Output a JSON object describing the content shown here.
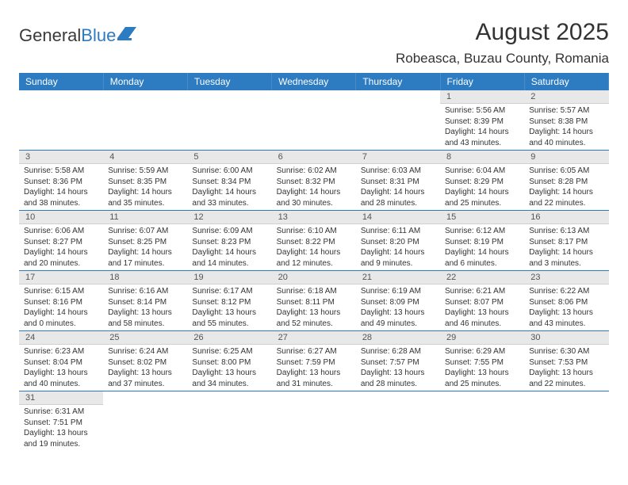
{
  "logo": {
    "part1": "General",
    "part2": "Blue"
  },
  "title": "August 2025",
  "location": "Robeasca, Buzau County, Romania",
  "colors": {
    "header_bg": "#2d7bc0",
    "header_text": "#ffffff",
    "daynum_bg": "#e8e8e8",
    "border": "#2d7bc0"
  },
  "daysOfWeek": [
    "Sunday",
    "Monday",
    "Tuesday",
    "Wednesday",
    "Thursday",
    "Friday",
    "Saturday"
  ],
  "weeks": [
    [
      null,
      null,
      null,
      null,
      null,
      {
        "n": "1",
        "sunrise": "5:56 AM",
        "sunset": "8:39 PM",
        "daylight": "14 hours and 43 minutes."
      },
      {
        "n": "2",
        "sunrise": "5:57 AM",
        "sunset": "8:38 PM",
        "daylight": "14 hours and 40 minutes."
      }
    ],
    [
      {
        "n": "3",
        "sunrise": "5:58 AM",
        "sunset": "8:36 PM",
        "daylight": "14 hours and 38 minutes."
      },
      {
        "n": "4",
        "sunrise": "5:59 AM",
        "sunset": "8:35 PM",
        "daylight": "14 hours and 35 minutes."
      },
      {
        "n": "5",
        "sunrise": "6:00 AM",
        "sunset": "8:34 PM",
        "daylight": "14 hours and 33 minutes."
      },
      {
        "n": "6",
        "sunrise": "6:02 AM",
        "sunset": "8:32 PM",
        "daylight": "14 hours and 30 minutes."
      },
      {
        "n": "7",
        "sunrise": "6:03 AM",
        "sunset": "8:31 PM",
        "daylight": "14 hours and 28 minutes."
      },
      {
        "n": "8",
        "sunrise": "6:04 AM",
        "sunset": "8:29 PM",
        "daylight": "14 hours and 25 minutes."
      },
      {
        "n": "9",
        "sunrise": "6:05 AM",
        "sunset": "8:28 PM",
        "daylight": "14 hours and 22 minutes."
      }
    ],
    [
      {
        "n": "10",
        "sunrise": "6:06 AM",
        "sunset": "8:27 PM",
        "daylight": "14 hours and 20 minutes."
      },
      {
        "n": "11",
        "sunrise": "6:07 AM",
        "sunset": "8:25 PM",
        "daylight": "14 hours and 17 minutes."
      },
      {
        "n": "12",
        "sunrise": "6:09 AM",
        "sunset": "8:23 PM",
        "daylight": "14 hours and 14 minutes."
      },
      {
        "n": "13",
        "sunrise": "6:10 AM",
        "sunset": "8:22 PM",
        "daylight": "14 hours and 12 minutes."
      },
      {
        "n": "14",
        "sunrise": "6:11 AM",
        "sunset": "8:20 PM",
        "daylight": "14 hours and 9 minutes."
      },
      {
        "n": "15",
        "sunrise": "6:12 AM",
        "sunset": "8:19 PM",
        "daylight": "14 hours and 6 minutes."
      },
      {
        "n": "16",
        "sunrise": "6:13 AM",
        "sunset": "8:17 PM",
        "daylight": "14 hours and 3 minutes."
      }
    ],
    [
      {
        "n": "17",
        "sunrise": "6:15 AM",
        "sunset": "8:16 PM",
        "daylight": "14 hours and 0 minutes."
      },
      {
        "n": "18",
        "sunrise": "6:16 AM",
        "sunset": "8:14 PM",
        "daylight": "13 hours and 58 minutes."
      },
      {
        "n": "19",
        "sunrise": "6:17 AM",
        "sunset": "8:12 PM",
        "daylight": "13 hours and 55 minutes."
      },
      {
        "n": "20",
        "sunrise": "6:18 AM",
        "sunset": "8:11 PM",
        "daylight": "13 hours and 52 minutes."
      },
      {
        "n": "21",
        "sunrise": "6:19 AM",
        "sunset": "8:09 PM",
        "daylight": "13 hours and 49 minutes."
      },
      {
        "n": "22",
        "sunrise": "6:21 AM",
        "sunset": "8:07 PM",
        "daylight": "13 hours and 46 minutes."
      },
      {
        "n": "23",
        "sunrise": "6:22 AM",
        "sunset": "8:06 PM",
        "daylight": "13 hours and 43 minutes."
      }
    ],
    [
      {
        "n": "24",
        "sunrise": "6:23 AM",
        "sunset": "8:04 PM",
        "daylight": "13 hours and 40 minutes."
      },
      {
        "n": "25",
        "sunrise": "6:24 AM",
        "sunset": "8:02 PM",
        "daylight": "13 hours and 37 minutes."
      },
      {
        "n": "26",
        "sunrise": "6:25 AM",
        "sunset": "8:00 PM",
        "daylight": "13 hours and 34 minutes."
      },
      {
        "n": "27",
        "sunrise": "6:27 AM",
        "sunset": "7:59 PM",
        "daylight": "13 hours and 31 minutes."
      },
      {
        "n": "28",
        "sunrise": "6:28 AM",
        "sunset": "7:57 PM",
        "daylight": "13 hours and 28 minutes."
      },
      {
        "n": "29",
        "sunrise": "6:29 AM",
        "sunset": "7:55 PM",
        "daylight": "13 hours and 25 minutes."
      },
      {
        "n": "30",
        "sunrise": "6:30 AM",
        "sunset": "7:53 PM",
        "daylight": "13 hours and 22 minutes."
      }
    ],
    [
      {
        "n": "31",
        "sunrise": "6:31 AM",
        "sunset": "7:51 PM",
        "daylight": "13 hours and 19 minutes."
      },
      null,
      null,
      null,
      null,
      null,
      null
    ]
  ],
  "labels": {
    "sunrise": "Sunrise:",
    "sunset": "Sunset:",
    "daylight": "Daylight:"
  }
}
